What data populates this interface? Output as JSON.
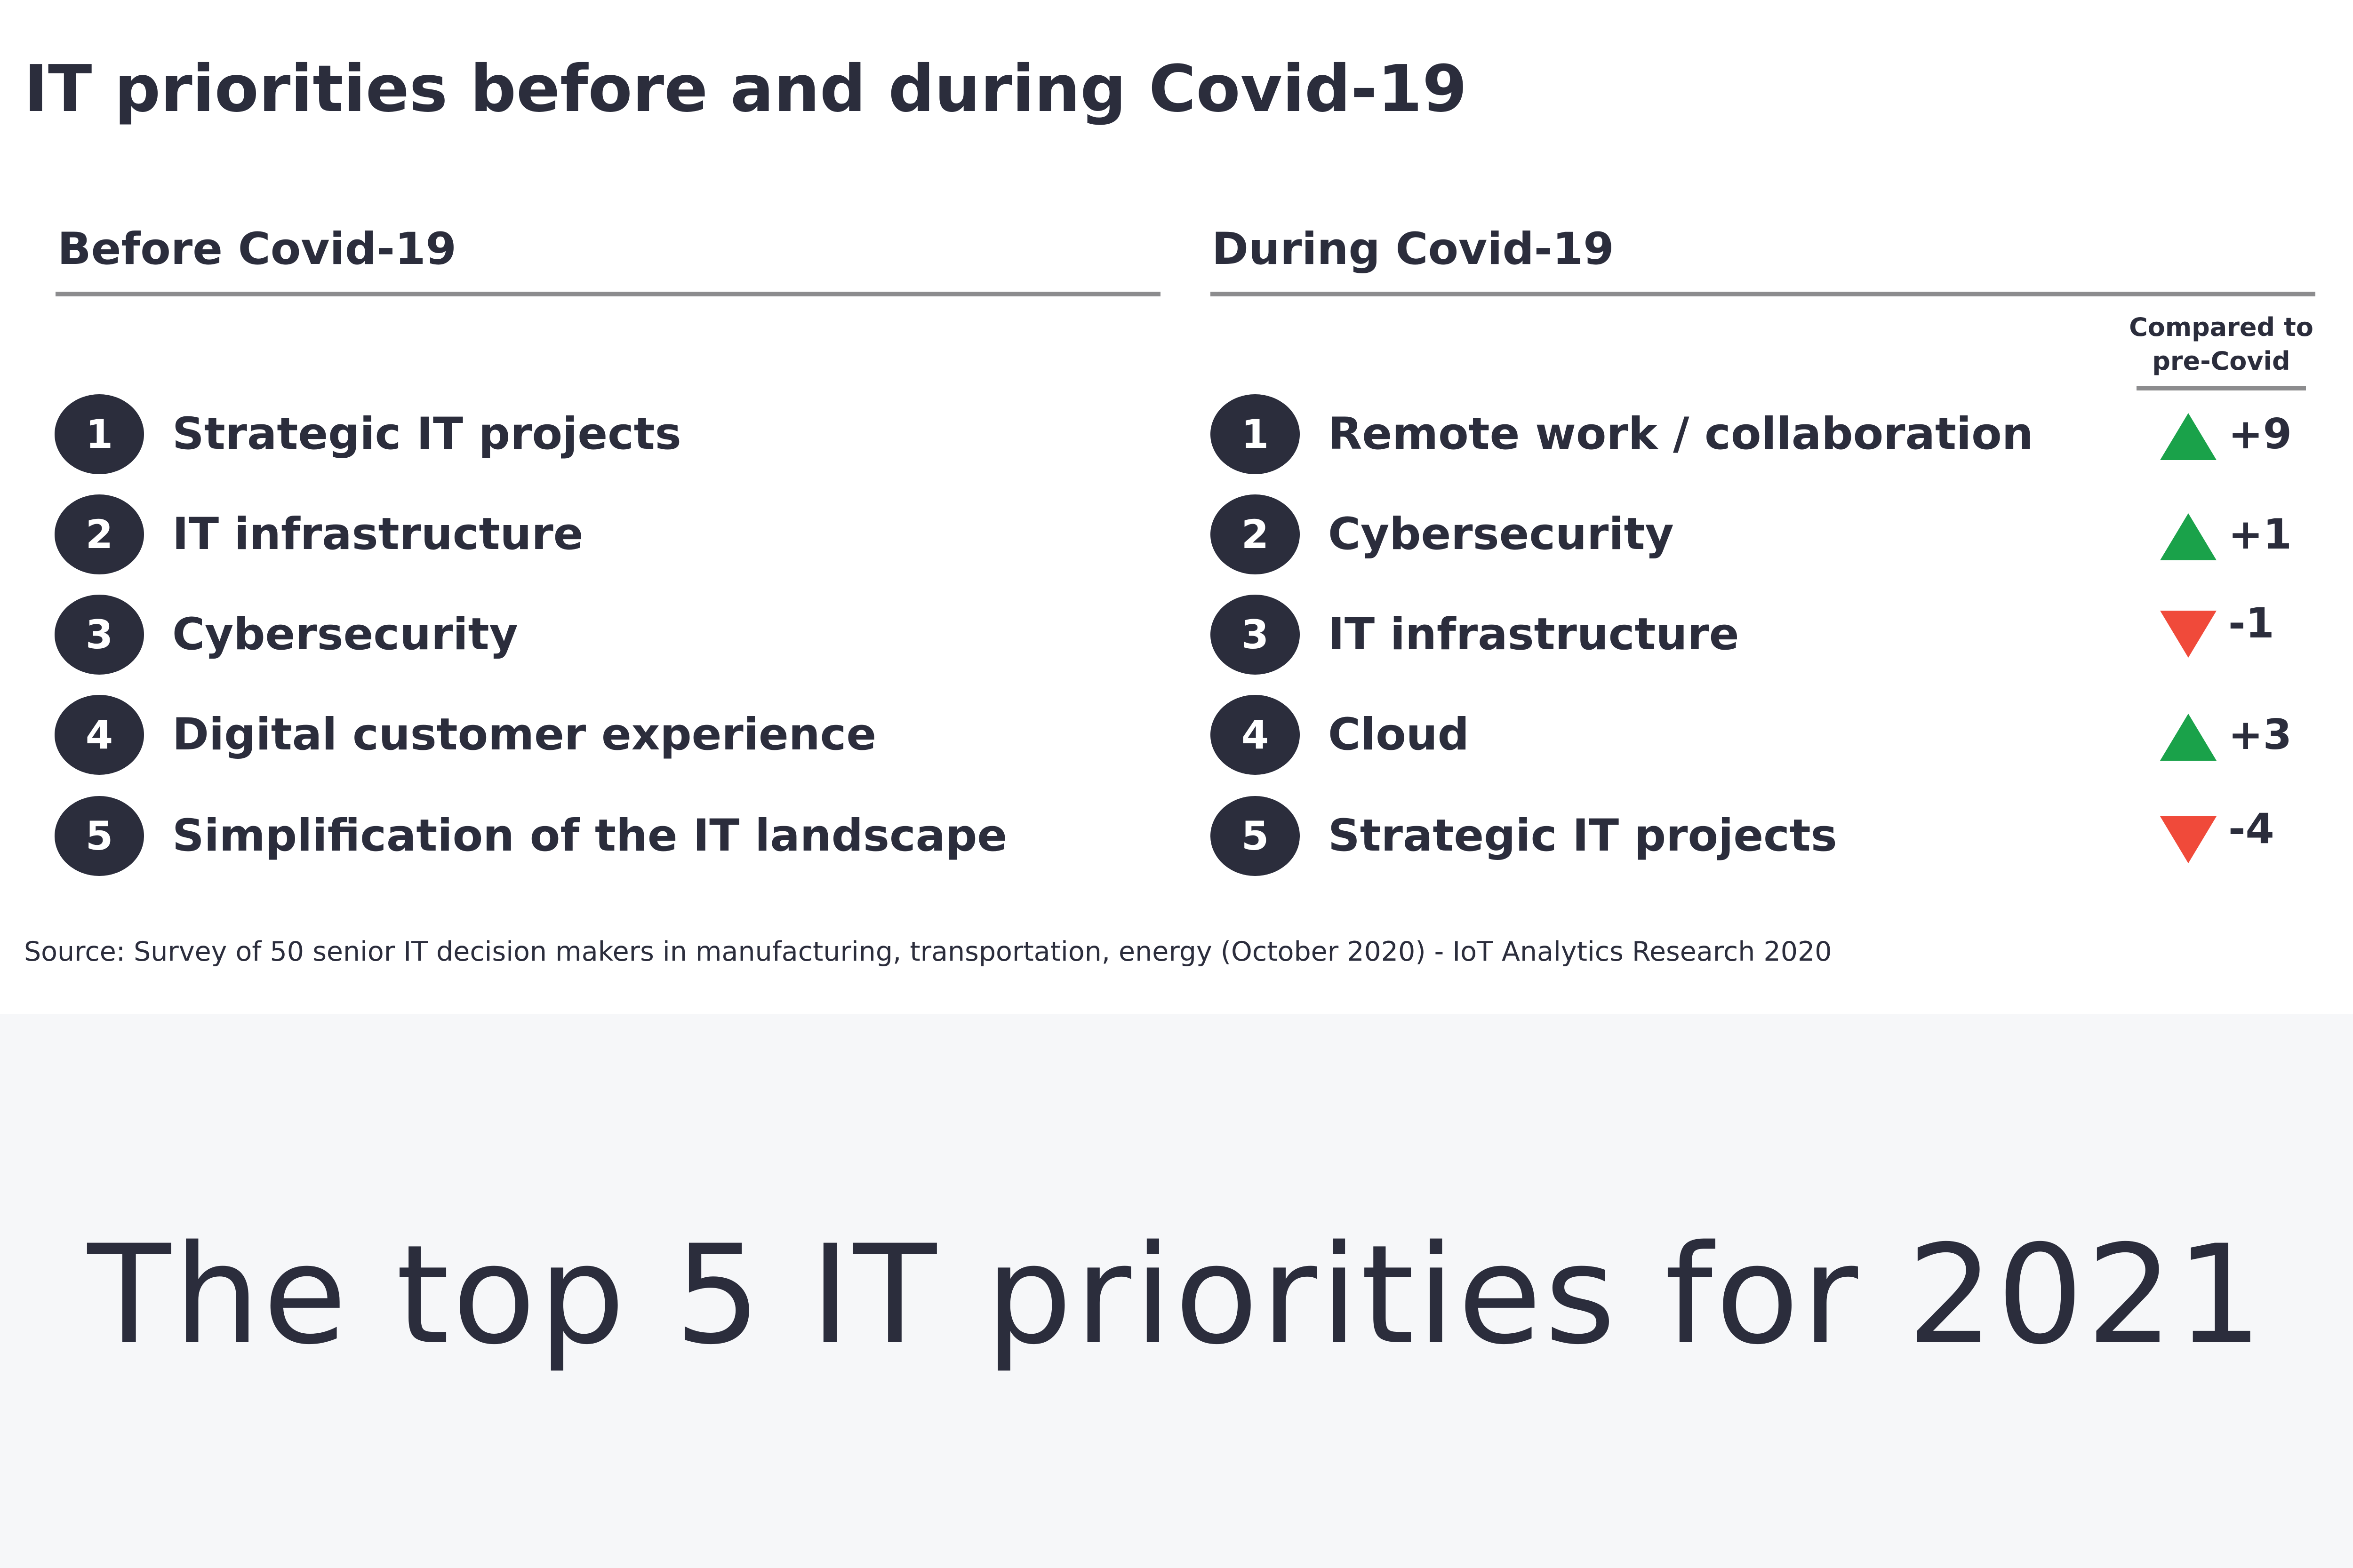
{
  "title": "IT priorities before and during Covid-19",
  "before": {
    "header": "Before Covid-19",
    "items": [
      {
        "rank": "1",
        "label": "Strategic IT projects"
      },
      {
        "rank": "2",
        "label": "IT infrastructure"
      },
      {
        "rank": "3",
        "label": "Cybersecurity"
      },
      {
        "rank": "4",
        "label": "Digital customer experience"
      },
      {
        "rank": "5",
        "label": "Simplification of the IT landscape"
      }
    ]
  },
  "during": {
    "header": "During Covid-19",
    "compare_header_line1": "Compared to",
    "compare_header_line2": "pre-Covid",
    "items": [
      {
        "rank": "1",
        "label": "Remote work / collaboration",
        "change": "+9",
        "direction": "up"
      },
      {
        "rank": "2",
        "label": "Cybersecurity",
        "change": "+1",
        "direction": "up"
      },
      {
        "rank": "3",
        "label": "IT infrastructure",
        "change": "-1",
        "direction": "down"
      },
      {
        "rank": "4",
        "label": "Cloud",
        "change": "+3",
        "direction": "up"
      },
      {
        "rank": "5",
        "label": "Strategic IT projects",
        "change": "-4",
        "direction": "down"
      }
    ]
  },
  "source": "Source: Survey of 50 senior IT decision makers in manufacturing, transportation, energy (October 2020) -  IoT Analytics Research 2020",
  "banner": {
    "title": "The top 5 IT priorities for 2021"
  },
  "colors": {
    "up": "#1aa24a",
    "down": "#f04a3a",
    "dark": "#2b2d3c",
    "rule": "#8c8c8e",
    "banner_bg": "#f6f7f9"
  }
}
